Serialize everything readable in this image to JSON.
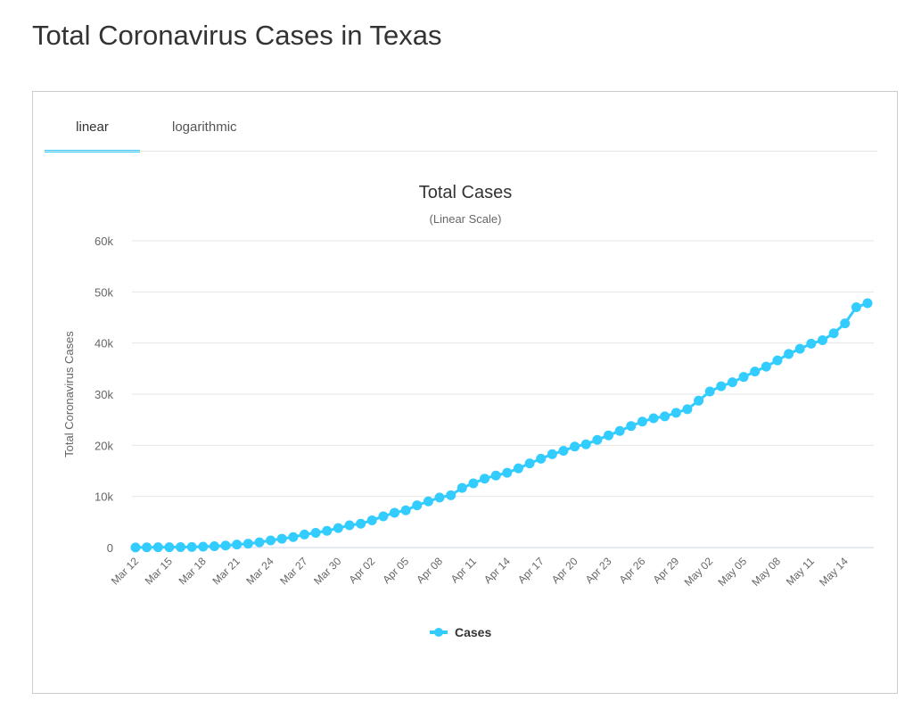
{
  "page": {
    "title": "Total Coronavirus Cases in Texas"
  },
  "tabs": [
    {
      "label": "linear",
      "active": true
    },
    {
      "label": "logarithmic",
      "active": false
    }
  ],
  "colors": {
    "accent": "#33ccff",
    "series": "#33ccff"
  },
  "chart_data": {
    "type": "line",
    "title": "Total Cases",
    "subtitle": "(Linear Scale)",
    "xlabel": "",
    "ylabel": "Total Coronavirus Cases",
    "ylim": [
      0,
      60000
    ],
    "yticks": [
      0,
      10000,
      20000,
      30000,
      40000,
      50000,
      60000
    ],
    "ytick_labels": [
      "0",
      "10k",
      "20k",
      "30k",
      "40k",
      "50k",
      "60k"
    ],
    "xtick_labels": [
      "Mar 12",
      "Mar 15",
      "Mar 18",
      "Mar 21",
      "Mar 24",
      "Mar 27",
      "Mar 30",
      "Apr 02",
      "Apr 05",
      "Apr 08",
      "Apr 11",
      "Apr 14",
      "Apr 17",
      "Apr 20",
      "Apr 23",
      "Apr 26",
      "Apr 29",
      "May 02",
      "May 05",
      "May 08",
      "May 11",
      "May 14"
    ],
    "legend": {
      "position": "bottom",
      "entries": [
        "Cases"
      ]
    },
    "grid": true,
    "series": [
      {
        "name": "Cases",
        "values": [
          30,
          43,
          57,
          72,
          85,
          110,
          173,
          260,
          394,
          581,
          758,
          1024,
          1396,
          1731,
          2052,
          2552,
          2877,
          3266,
          3809,
          4355,
          4669,
          5330,
          6110,
          6812,
          7276,
          8262,
          9028,
          9784,
          10230,
          11671,
          12561,
          13484,
          14087,
          14624,
          15492,
          16455,
          17371,
          18260,
          18923,
          19751,
          20196,
          21069,
          21944,
          22806,
          23773,
          24631,
          25297,
          25656,
          26357,
          27054,
          28727,
          30522,
          31548,
          32332,
          33369,
          34422,
          35390,
          36609,
          37860,
          38869,
          39869,
          40555,
          41905,
          43851,
          46999,
          47784
        ]
      }
    ]
  }
}
